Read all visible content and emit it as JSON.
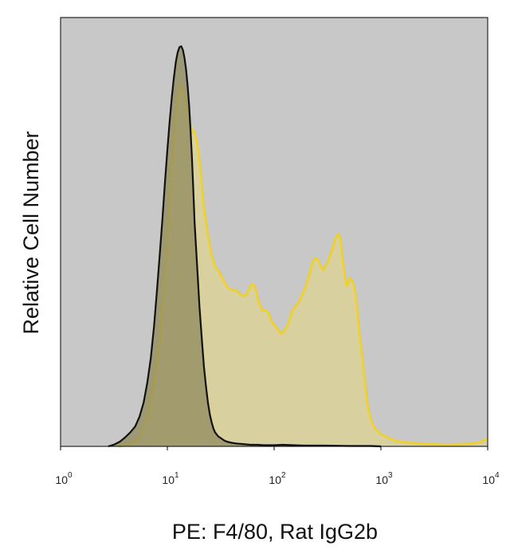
{
  "chart_data": {
    "type": "histogram",
    "title": "",
    "xlabel": "PE: F4/80, Rat IgG2b",
    "ylabel": "Relative Cell Number",
    "x_scale": "log",
    "xlim": [
      1,
      10000
    ],
    "ylim": [
      0,
      1
    ],
    "grid": false,
    "legend": "none",
    "background_color": "#c8c8c8",
    "x_ticks": [
      {
        "value": 1,
        "base": "10",
        "exp": "0"
      },
      {
        "value": 10,
        "base": "10",
        "exp": "1"
      },
      {
        "value": 100,
        "base": "10",
        "exp": "2"
      },
      {
        "value": 1000,
        "base": "10",
        "exp": "3"
      },
      {
        "value": 10000,
        "base": "10",
        "exp": "4"
      }
    ],
    "series": [
      {
        "key": "f480",
        "stroke": "#f5d20a",
        "fill": "#d9d09a",
        "fill_opacity": 0.9,
        "x": [
          3.5,
          4.5,
          5.5,
          6.5,
          7.5,
          8.5,
          9.5,
          10.5,
          11.2,
          12,
          12.8,
          13.5,
          14.2,
          15,
          15.8,
          16.5,
          17.2,
          18,
          19,
          20,
          21,
          22,
          24,
          26,
          28,
          30,
          33,
          36,
          40,
          44,
          48,
          52,
          56,
          60,
          64,
          68,
          72,
          78,
          84,
          90,
          96,
          102,
          110,
          118,
          126,
          134,
          142,
          150,
          160,
          172,
          185,
          200,
          215,
          230,
          245,
          260,
          275,
          290,
          305,
          320,
          340,
          360,
          380,
          400,
          420,
          440,
          460,
          480,
          500,
          520,
          550,
          580,
          610,
          640,
          680,
          720,
          760,
          800,
          860,
          920,
          1000,
          1100,
          1200,
          1300,
          1400,
          1550,
          1700,
          1900,
          2100,
          2400,
          2700,
          3000,
          3500,
          4000,
          4500,
          5000,
          6000,
          7000,
          8000,
          9000,
          10000
        ],
        "y": [
          0.0,
          0.004,
          0.02,
          0.07,
          0.15,
          0.26,
          0.42,
          0.6,
          0.72,
          0.82,
          0.88,
          0.9,
          0.885,
          0.86,
          0.82,
          0.8,
          0.79,
          0.785,
          0.76,
          0.72,
          0.66,
          0.6,
          0.53,
          0.48,
          0.45,
          0.44,
          0.42,
          0.4,
          0.39,
          0.39,
          0.38,
          0.375,
          0.38,
          0.4,
          0.405,
          0.39,
          0.36,
          0.34,
          0.34,
          0.33,
          0.31,
          0.3,
          0.29,
          0.28,
          0.29,
          0.3,
          0.32,
          0.34,
          0.35,
          0.36,
          0.38,
          0.4,
          0.43,
          0.46,
          0.47,
          0.465,
          0.45,
          0.44,
          0.45,
          0.46,
          0.48,
          0.5,
          0.52,
          0.53,
          0.52,
          0.47,
          0.43,
          0.4,
          0.41,
          0.42,
          0.41,
          0.38,
          0.33,
          0.27,
          0.21,
          0.15,
          0.1,
          0.07,
          0.05,
          0.04,
          0.03,
          0.025,
          0.02,
          0.016,
          0.013,
          0.011,
          0.009,
          0.008,
          0.007,
          0.006,
          0.005,
          0.005,
          0.004,
          0.003,
          0.003,
          0.004,
          0.005,
          0.006,
          0.008,
          0.012,
          0.02
        ]
      },
      {
        "key": "isotype",
        "stroke": "#111111",
        "fill": "#8f8a5c",
        "fill_opacity": 0.75,
        "x": [
          2.8,
          3.2,
          3.6,
          4.0,
          4.5,
          5.0,
          5.5,
          6.0,
          6.5,
          7.0,
          7.5,
          8.0,
          8.5,
          9.0,
          9.5,
          10,
          10.5,
          11,
          11.5,
          12,
          12.5,
          13,
          13.5,
          14,
          14.5,
          15,
          15.5,
          16,
          16.5,
          17,
          17.5,
          18,
          19,
          20,
          21,
          22,
          23,
          24,
          25,
          26,
          27,
          28,
          30,
          32,
          34,
          36,
          40,
          45,
          50,
          55,
          60,
          70,
          80,
          90,
          100,
          120,
          150,
          200,
          300,
          500,
          800,
          1000
        ],
        "y": [
          0.0,
          0.005,
          0.012,
          0.022,
          0.035,
          0.05,
          0.075,
          0.11,
          0.16,
          0.22,
          0.3,
          0.39,
          0.48,
          0.57,
          0.66,
          0.74,
          0.81,
          0.87,
          0.92,
          0.96,
          0.985,
          0.998,
          1.0,
          0.99,
          0.97,
          0.94,
          0.9,
          0.85,
          0.79,
          0.72,
          0.64,
          0.56,
          0.45,
          0.35,
          0.27,
          0.2,
          0.15,
          0.11,
          0.08,
          0.06,
          0.045,
          0.035,
          0.025,
          0.02,
          0.015,
          0.012,
          0.009,
          0.007,
          0.006,
          0.005,
          0.004,
          0.004,
          0.003,
          0.003,
          0.003,
          0.004,
          0.003,
          0.002,
          0.002,
          0.001,
          0.001,
          0.0
        ]
      }
    ]
  }
}
